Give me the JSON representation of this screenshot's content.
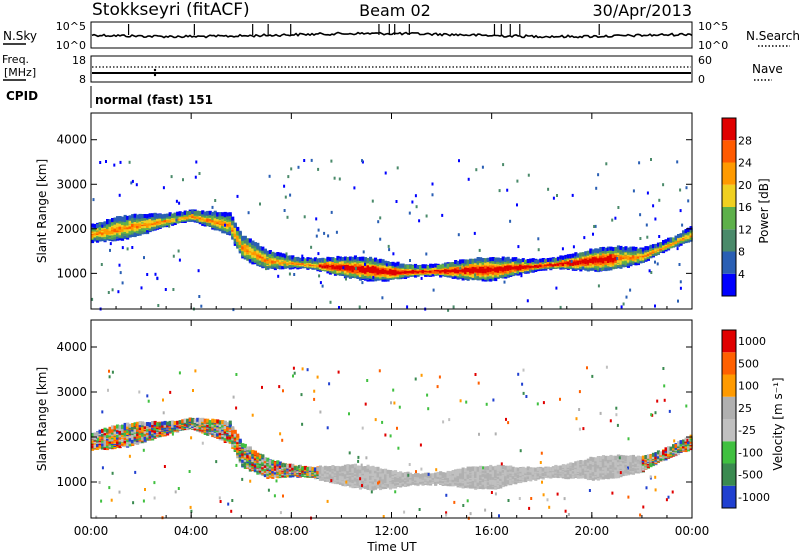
{
  "header": {
    "station": "Stokkseyri (fitACF)",
    "beam": "Beam 02",
    "date": "30/Apr/2013"
  },
  "panels": {
    "noise": {
      "left_label": "N.Sky",
      "right_label": "N.Search",
      "left_ticks": [
        "10^5",
        "10^0"
      ],
      "right_ticks": [
        "10^5",
        "10^0"
      ]
    },
    "freq": {
      "left_label_top": "Freq.",
      "left_label_bottom": "[MHz]",
      "right_label": "Nave",
      "left_ticks": [
        "18",
        "8"
      ],
      "right_ticks": [
        "60",
        "0"
      ]
    },
    "cpid": {
      "label": "CPID",
      "mode_text": "normal (fast) 151"
    }
  },
  "chart_data": [
    {
      "type": "heatmap",
      "title": "",
      "xlabel": "Time UT",
      "ylabel": "Slant Range [km]",
      "x_ticks": [
        "00:00",
        "04:00",
        "08:00",
        "12:00",
        "16:00",
        "20:00",
        "00:00"
      ],
      "x_range_hours": [
        0,
        24
      ],
      "y_ticks": [
        1000,
        2000,
        3000,
        4000
      ],
      "ylim": [
        200,
        4600
      ],
      "colorbar_label": "Power [dB]",
      "colorbar_ticks": [
        "4",
        "8",
        "12",
        "16",
        "20",
        "24",
        "28"
      ],
      "colorbar_colors": [
        "#0000ff",
        "#2a5fb4",
        "#4a8a6a",
        "#5db04a",
        "#f0d020",
        "#ff9a00",
        "#ff5a00",
        "#e00000"
      ],
      "echo_bands": [
        {
          "t": [
            0,
            2,
            4,
            5.5,
            6,
            7,
            9,
            12,
            16,
            20,
            22,
            24
          ],
          "range_km": [
            1900,
            2100,
            2300,
            2100,
            1600,
            1300,
            1200,
            1050,
            1100,
            1300,
            1400,
            1900
          ]
        }
      ]
    },
    {
      "type": "heatmap",
      "title": "",
      "xlabel": "Time UT",
      "ylabel": "Slant Range [km]",
      "x_ticks": [
        "00:00",
        "04:00",
        "08:00",
        "12:00",
        "16:00",
        "20:00",
        "00:00"
      ],
      "x_range_hours": [
        0,
        24
      ],
      "y_ticks": [
        1000,
        2000,
        3000,
        4000
      ],
      "ylim": [
        200,
        4600
      ],
      "colorbar_label": "Velocity [m s⁻¹]",
      "colorbar_ticks": [
        "1000",
        "500",
        "100",
        "25",
        "-25",
        "-100",
        "-500",
        "-1000"
      ],
      "colorbar_colors": [
        "#2040d0",
        "#3a8a50",
        "#40c040",
        "#c0c0c0",
        "#b0b0b0",
        "#ff9a00",
        "#ff6000",
        "#e00000"
      ],
      "echo_bands": [
        {
          "t": [
            0,
            2,
            4,
            5.5,
            6,
            7,
            9,
            12,
            16,
            20,
            22,
            24
          ],
          "range_km": [
            1900,
            2100,
            2300,
            2100,
            1600,
            1300,
            1200,
            1050,
            1100,
            1300,
            1400,
            1900
          ]
        }
      ]
    }
  ]
}
